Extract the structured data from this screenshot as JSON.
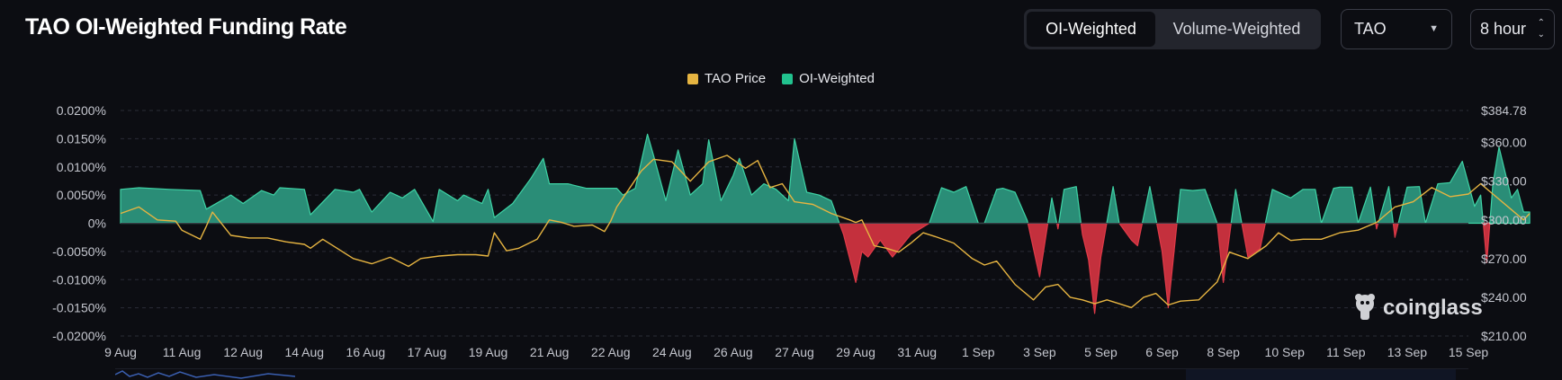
{
  "title": "TAO OI-Weighted Funding Rate",
  "toggle": {
    "options": [
      "OI-Weighted",
      "Volume-Weighted"
    ],
    "active": "OI-Weighted"
  },
  "coin_select": {
    "value": "TAO"
  },
  "period_select": {
    "value": "8 hour"
  },
  "colors": {
    "price": "#e6b441",
    "positive": "#2a8d77",
    "positive_line": "#3ed3a5",
    "negative": "#c4303d",
    "legend_oi": "#21c28e",
    "grid": "#2a2d37",
    "background": "#0c0d12"
  },
  "watermark": "coinglass",
  "chart_data": {
    "type": "area",
    "title": "TAO OI-Weighted Funding Rate",
    "legend": [
      "TAO Price",
      "OI-Weighted"
    ],
    "categories": [
      "9 Aug",
      "11 Aug",
      "12 Aug",
      "14 Aug",
      "16 Aug",
      "17 Aug",
      "19 Aug",
      "21 Aug",
      "22 Aug",
      "24 Aug",
      "26 Aug",
      "27 Aug",
      "29 Aug",
      "31 Aug",
      "1 Sep",
      "3 Sep",
      "5 Sep",
      "6 Sep",
      "8 Sep",
      "10 Sep",
      "11 Sep",
      "13 Sep",
      "15 Sep"
    ],
    "y_left": {
      "ticks": [
        "0.0200%",
        "0.0150%",
        "0.0100%",
        "0.0050%",
        "0%",
        "-0.0050%",
        "-0.0100%",
        "-0.0150%",
        "-0.0200%"
      ],
      "ylim": [
        -0.02,
        0.02
      ]
    },
    "y_right": {
      "ticks": [
        "$384.78",
        "$360.00",
        "$330.00",
        "$300.00",
        "$270.00",
        "$240.00",
        "$210.00"
      ],
      "ylim": [
        210,
        384.78
      ]
    },
    "series": [
      {
        "name": "OI-Weighted",
        "unit": "%",
        "x": [
          0,
          0.3,
          0.8,
          1.3,
          1.4,
          1.8,
          2.0,
          2.3,
          2.5,
          2.6,
          3.0,
          3.1,
          3.5,
          3.8,
          3.9,
          4.1,
          4.4,
          4.6,
          4.8,
          5.1,
          5.2,
          5.5,
          5.6,
          5.9,
          6.0,
          6.1,
          6.4,
          6.7,
          6.9,
          7.0,
          7.3,
          7.6,
          7.8,
          7.9,
          8.1,
          8.2,
          8.4,
          8.6,
          8.7,
          8.9,
          9.1,
          9.3,
          9.5,
          9.6,
          9.8,
          10.0,
          10.1,
          10.3,
          10.5,
          10.7,
          10.9,
          11.0,
          11.2,
          11.4,
          11.6,
          11.8,
          12.0,
          12.1,
          12.2,
          12.4,
          12.6,
          12.9,
          13.2,
          13.4,
          13.6,
          13.8,
          14.0,
          14.1,
          14.3,
          14.4,
          14.6,
          14.8,
          15.0,
          15.2,
          15.3,
          15.4,
          15.6,
          15.7,
          15.8,
          15.9,
          16.0,
          16.2,
          16.3,
          16.5,
          16.6,
          16.8,
          17.0,
          17.1,
          17.3,
          17.5,
          17.7,
          17.9,
          18.0,
          18.2,
          18.4,
          18.6,
          18.8,
          19.1,
          19.3,
          19.5,
          19.6,
          19.8,
          19.9,
          20.1,
          20.2,
          20.4,
          20.5,
          20.7,
          20.8,
          21.0,
          21.2,
          21.3,
          21.5,
          21.7,
          21.9,
          22.0,
          22.1,
          22.2,
          22.3,
          22.4,
          22.5,
          22.7,
          22.8,
          22.9,
          23.0
        ],
        "values": [
          0.006,
          0.0063,
          0.006,
          0.0058,
          0.0025,
          0.005,
          0.0035,
          0.0058,
          0.005,
          0.0063,
          0.006,
          0.0015,
          0.006,
          0.0055,
          0.006,
          0.002,
          0.0055,
          0.0045,
          0.006,
          0.0003,
          0.006,
          0.004,
          0.005,
          0.0035,
          0.006,
          0.001,
          0.0035,
          0.008,
          0.0115,
          0.007,
          0.007,
          0.0062,
          0.0062,
          0.0062,
          0.0062,
          0.005,
          0.0062,
          0.0158,
          0.012,
          0.004,
          0.013,
          0.005,
          0.007,
          0.0148,
          0.004,
          0.0085,
          0.0115,
          0.005,
          0.007,
          0.006,
          0.004,
          0.015,
          0.0055,
          0.005,
          0.004,
          -0.002,
          -0.0105,
          -0.005,
          -0.006,
          -0.003,
          -0.006,
          -0.002,
          0.0,
          0.0063,
          0.0055,
          0.0065,
          0.0,
          0.0,
          0.006,
          0.0062,
          0.0055,
          0.0005,
          -0.0095,
          0.0045,
          -0.001,
          0.006,
          0.0065,
          -0.002,
          -0.0065,
          -0.016,
          -0.006,
          0.0065,
          0.0,
          -0.003,
          -0.004,
          0.0065,
          -0.005,
          -0.015,
          0.006,
          0.0058,
          0.006,
          0.0,
          -0.0105,
          0.006,
          -0.006,
          -0.0045,
          0.006,
          0.0045,
          0.006,
          0.006,
          0.0,
          0.0062,
          0.0064,
          0.0064,
          0.0,
          0.0064,
          -0.001,
          0.0065,
          -0.0025,
          0.0064,
          0.0065,
          0.0,
          0.007,
          0.0072,
          0.011,
          0.007,
          0.003,
          0.005,
          -0.007,
          0.007,
          0.0135,
          0.0045,
          0.006,
          0.002,
          0.002
        ]
      },
      {
        "name": "TAO Price",
        "unit": "$",
        "x": [
          0,
          0.3,
          0.6,
          0.9,
          1.0,
          1.3,
          1.4,
          1.5,
          1.8,
          2.1,
          2.4,
          2.7,
          3.0,
          3.1,
          3.3,
          3.6,
          3.8,
          4.1,
          4.4,
          4.7,
          4.9,
          5.2,
          5.5,
          5.8,
          6.0,
          6.1,
          6.3,
          6.5,
          6.8,
          7.0,
          7.2,
          7.4,
          7.7,
          7.9,
          8.0,
          8.1,
          8.3,
          8.5,
          8.7,
          9.0,
          9.3,
          9.6,
          9.9,
          10.2,
          10.4,
          10.6,
          10.8,
          11.0,
          11.3,
          11.6,
          11.9,
          12.0,
          12.1,
          12.3,
          12.5,
          12.7,
          12.9,
          13.1,
          13.3,
          13.6,
          13.9,
          14.1,
          14.3,
          14.6,
          14.9,
          15.1,
          15.3,
          15.5,
          15.7,
          15.9,
          16.1,
          16.3,
          16.5,
          16.7,
          16.9,
          17.1,
          17.3,
          17.6,
          17.9,
          18.1,
          18.4,
          18.7,
          18.9,
          19.1,
          19.3,
          19.6,
          19.9,
          20.2,
          20.5,
          20.8,
          21.1,
          21.4,
          21.7,
          22.0,
          22.2,
          22.4,
          22.7,
          22.9,
          23.0
        ],
        "values": [
          305,
          310,
          300,
          299,
          292,
          285,
          295,
          306,
          288,
          286,
          286,
          283,
          281,
          278,
          285,
          276,
          270,
          266,
          271,
          264,
          270,
          272,
          273,
          273,
          272,
          290,
          276,
          278,
          285,
          300,
          298,
          295,
          296,
          291,
          299,
          310,
          324,
          338,
          347,
          345,
          330,
          345,
          350,
          340,
          346,
          325,
          328,
          314,
          312,
          305,
          300,
          298,
          300,
          280,
          278,
          275,
          282,
          290,
          287,
          282,
          270,
          265,
          268,
          250,
          238,
          248,
          250,
          240,
          238,
          235,
          238,
          235,
          232,
          240,
          243,
          234,
          237,
          238,
          252,
          275,
          270,
          280,
          290,
          284,
          285,
          285,
          290,
          292,
          298,
          310,
          314,
          325,
          318,
          320,
          328,
          320,
          308,
          300,
          305
        ]
      }
    ]
  }
}
